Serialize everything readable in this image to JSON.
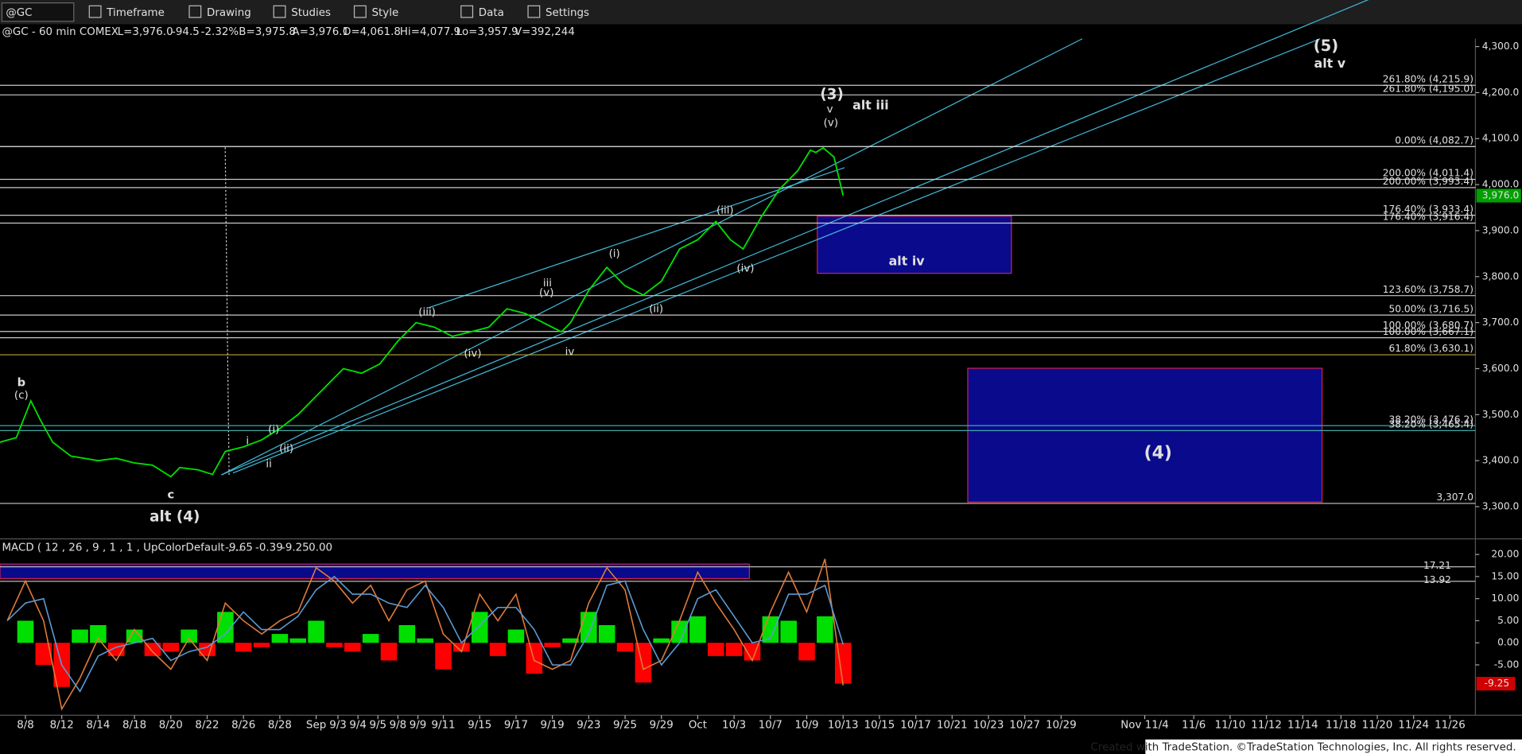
{
  "toolbar": {
    "symbol": "@GC",
    "menus": [
      "Timeframe",
      "Drawing",
      "Studies",
      "Style",
      "Data",
      "Settings"
    ]
  },
  "header": {
    "symbol": "@GC - 60 min COMEX",
    "fields": [
      {
        "text": "L=3,976.0",
        "color": "#ff5050"
      },
      {
        "text": "-94.5",
        "color": "#ff5050"
      },
      {
        "text": "-2.32%",
        "color": "#ff5050"
      },
      {
        "text": "B=3,975.8",
        "color": "#e0e0e0"
      },
      {
        "text": "A=3,976.1",
        "color": "#e0e0e0"
      },
      {
        "text": "O=4,061.8",
        "color": "#e0e0e0"
      },
      {
        "text": "Hi=4,077.9",
        "color": "#e0e0e0"
      },
      {
        "text": "Lo=3,957.9",
        "color": "#e0e0e0"
      },
      {
        "text": "V=392,244",
        "color": "#e0e0e0"
      }
    ]
  },
  "chart_data": [
    {
      "type": "line",
      "color": "#00e000",
      "x": [
        -1.4,
        -0.5,
        0,
        0.3,
        0.8,
        1.5,
        2.5,
        4,
        5,
        6,
        7,
        8,
        8.5,
        9.5,
        10.3,
        11,
        12,
        13,
        14,
        15,
        16,
        16.5,
        17.5,
        18.5,
        19.5,
        20.5,
        21.5,
        22.5,
        23.5,
        24.5,
        25.5,
        26.5,
        27.5,
        28.5,
        29.5,
        30,
        31,
        32,
        33,
        34,
        35,
        36,
        37,
        38,
        38.8,
        39.5,
        40.5,
        41.5,
        42.5,
        43.2,
        43.5,
        43.9,
        44.5,
        44.8,
        45
      ],
      "values": [
        3440,
        3450,
        3500,
        3530,
        3490,
        3440,
        3410,
        3400,
        3405,
        3395,
        3390,
        3365,
        3385,
        3380,
        3370,
        3420,
        3430,
        3445,
        3470,
        3500,
        3540,
        3560,
        3600,
        3590,
        3610,
        3660,
        3700,
        3690,
        3670,
        3680,
        3690,
        3730,
        3720,
        3700,
        3680,
        3700,
        3770,
        3820,
        3780,
        3760,
        3790,
        3860,
        3880,
        3920,
        3880,
        3860,
        3930,
        3990,
        4030,
        4075,
        4070,
        4080,
        4060,
        4010,
        3976
      ],
      "xlim": [
        -1.4,
        79.8
      ],
      "ylim": [
        3230,
        4317
      ],
      "yticks": [
        {
          "value": 4300,
          "label": "4,300.0"
        },
        {
          "value": 4200,
          "label": "4,200.0"
        },
        {
          "value": 4100,
          "label": "4,100.0"
        },
        {
          "value": 4000,
          "label": "4,000.0"
        },
        {
          "value": 3900,
          "label": "3,900.0"
        },
        {
          "value": 3800,
          "label": "3,800.0"
        },
        {
          "value": 3700,
          "label": "3,700.0"
        },
        {
          "value": 3600,
          "label": "3,600.0"
        },
        {
          "value": 3500,
          "label": "3,500.0"
        },
        {
          "value": 3400,
          "label": "3,400.0"
        },
        {
          "value": 3300,
          "label": "3,300.0"
        }
      ],
      "xticks": [
        {
          "value": 0,
          "label": "8/8"
        },
        {
          "value": 2,
          "label": "8/12"
        },
        {
          "value": 4,
          "label": "8/14"
        },
        {
          "value": 6,
          "label": "8/18"
        },
        {
          "value": 8,
          "label": "8/20"
        },
        {
          "value": 10,
          "label": "8/22"
        },
        {
          "value": 12,
          "label": "8/26"
        },
        {
          "value": 14,
          "label": "8/28"
        },
        {
          "value": 16,
          "label": "Sep"
        },
        {
          "value": 17.2,
          "label": "9/3"
        },
        {
          "value": 18.3,
          "label": "9/4"
        },
        {
          "value": 19.4,
          "label": "9/5"
        },
        {
          "value": 20.5,
          "label": "9/8"
        },
        {
          "value": 21.6,
          "label": "9/9"
        },
        {
          "value": 23,
          "label": "9/11"
        },
        {
          "value": 25,
          "label": "9/15"
        },
        {
          "value": 27,
          "label": "9/17"
        },
        {
          "value": 29,
          "label": "9/19"
        },
        {
          "value": 31,
          "label": "9/23"
        },
        {
          "value": 33,
          "label": "9/25"
        },
        {
          "value": 35,
          "label": "9/29"
        },
        {
          "value": 37,
          "label": "Oct"
        },
        {
          "value": 39,
          "label": "10/3"
        },
        {
          "value": 41,
          "label": "10/7"
        },
        {
          "value": 43,
          "label": "10/9"
        },
        {
          "value": 45,
          "label": "10/13"
        },
        {
          "value": 47,
          "label": "10/15"
        },
        {
          "value": 49,
          "label": "10/17"
        },
        {
          "value": 51,
          "label": "10/21"
        },
        {
          "value": 53,
          "label": "10/23"
        },
        {
          "value": 55,
          "label": "10/27"
        },
        {
          "value": 57,
          "label": "10/29"
        },
        {
          "value": 61.6,
          "label": "Nov 11/4"
        },
        {
          "value": 64.3,
          "label": "11/6"
        },
        {
          "value": 66.3,
          "label": "11/10"
        },
        {
          "value": 68.3,
          "label": "11/12"
        },
        {
          "value": 70.3,
          "label": "11/14"
        },
        {
          "value": 72.4,
          "label": "11/18"
        },
        {
          "value": 74.4,
          "label": "11/20"
        },
        {
          "value": 76.4,
          "label": "11/24"
        },
        {
          "value": 78.4,
          "label": "11/26"
        }
      ],
      "last": {
        "value": 3976,
        "label": "3,976.0"
      },
      "levels": [
        {
          "label": "261.80% (4,215.9)",
          "value": 4215.9,
          "color": "#c8c8c8"
        },
        {
          "label": "261.80% (4,195.0)",
          "value": 4195,
          "color": "#c8c8c8"
        },
        {
          "label": "0.00% (4,082.7)",
          "value": 4082.7,
          "color": "#e8e8e8"
        },
        {
          "label": "200.00% (4,011.4)",
          "value": 4011.4,
          "color": "#c8c8c8"
        },
        {
          "label": "200.00% (3,993.4)",
          "value": 3993.4,
          "color": "#c8c8c8"
        },
        {
          "label": "176.40% (3,933.4)",
          "value": 3933.4,
          "color": "#c8c8c8"
        },
        {
          "label": "176.40% (3,916.4)",
          "value": 3916.4,
          "color": "#c8c8c8"
        },
        {
          "label": "123.60% (3,758.7)",
          "value": 3758.7,
          "color": "#c8c8c8"
        },
        {
          "label": "50.00% (3,716.5)",
          "value": 3716.5,
          "color": "#c8c8c8"
        },
        {
          "label": "100.00% (3,680.7)",
          "value": 3680.7,
          "color": "#c8c8c8"
        },
        {
          "label": "100.00% (3,667.1)",
          "value": 3667.1,
          "color": "#c8c8c8"
        },
        {
          "label": "61.80% (3,630.1)",
          "value": 3630.1,
          "color": "#b8a040"
        },
        {
          "label": "38.20% (3,476.2)",
          "value": 3476.2,
          "color": "#40a8a8"
        },
        {
          "label": "38.20% (3,465.4)",
          "value": 3465.4,
          "color": "#40a8a8"
        },
        {
          "label": "3,307.0",
          "value": 3307,
          "color": "#c8c8c8"
        }
      ],
      "annotations": [
        {
          "text": "(5)",
          "color": "#29b6f6"
        },
        {
          "text": "alt v",
          "color": "#29b6f6"
        },
        {
          "text": "(3)",
          "color": "#d0d8ff"
        },
        {
          "text": "v",
          "color": "#d0d0d0"
        },
        {
          "text": "(v)",
          "color": "#d0d0d0"
        },
        {
          "text": "alt iii",
          "color": "#29b6f6"
        },
        {
          "text": "alt iv",
          "color": "#29b6f6"
        },
        {
          "text": "(4)",
          "color": "#22dd22"
        },
        {
          "text": "alt (4)",
          "color": "#29b6f6"
        },
        {
          "text": "c",
          "color": "#22dd22"
        },
        {
          "text": "b",
          "color": "#22dd22"
        },
        {
          "text": "(c)",
          "color": "#22dd22"
        },
        {
          "text": "i",
          "color": "#d0d0d0"
        },
        {
          "text": "ii",
          "color": "#d0d0d0"
        },
        {
          "text": "(i)",
          "color": "#d0d0d0"
        },
        {
          "text": "(ii)",
          "color": "#d0d0d0"
        },
        {
          "text": "(iii)",
          "color": "#d0d0d0"
        },
        {
          "text": "(iv)",
          "color": "#d0d0d0"
        },
        {
          "text": "iii",
          "color": "#d0d0d0"
        },
        {
          "text": "(v)",
          "color": "#d0d0d0"
        },
        {
          "text": "iv",
          "color": "#d0d0d0"
        },
        {
          "text": "(i)",
          "color": "#d0d0d0"
        },
        {
          "text": "(ii)",
          "color": "#d0d0d0"
        },
        {
          "text": "(iii)",
          "color": "#d0d0d0"
        },
        {
          "text": "(iv)",
          "color": "#d0d0d0"
        }
      ]
    },
    {
      "type": "macd",
      "title": "MACD ( 12 , 26 , 9 , 1 , 1 , UpColorDefault ,...",
      "readings": [
        {
          "text": "-9.65",
          "color": "#ff9933"
        },
        {
          "text": "-0.39",
          "color": "#5b9bd5"
        },
        {
          "text": "-9.25",
          "color": "#ff4040"
        },
        {
          "text": "0.00",
          "color": "#33cc33"
        }
      ],
      "x": [
        -1,
        0,
        1,
        2,
        3,
        4,
        5,
        6,
        7,
        8,
        9,
        10,
        11,
        12,
        13,
        14,
        15,
        16,
        17,
        18,
        19,
        20,
        21,
        22,
        23,
        24,
        25,
        26,
        27,
        28,
        29,
        30,
        31,
        32,
        33,
        34,
        35,
        36,
        37,
        38,
        39,
        40,
        41,
        42,
        43,
        44,
        45
      ],
      "series": [
        {
          "color": "#e07b39",
          "values": [
            5,
            14,
            5,
            -15,
            -8,
            1,
            -4,
            3,
            -2,
            -6,
            1,
            -4,
            9,
            5,
            2,
            5,
            7,
            17,
            14,
            9,
            13,
            5,
            12,
            14,
            2,
            -2,
            11,
            5,
            11,
            -4,
            -6,
            -4,
            9,
            17,
            12,
            -6,
            -4,
            5,
            16,
            9,
            3,
            -4,
            7,
            16,
            7,
            19,
            -9.65
          ]
        },
        {
          "color": "#5b9bd5",
          "values": [
            5,
            9,
            10,
            -5,
            -11,
            -3,
            -1,
            0,
            1,
            -4,
            -2,
            -1,
            2,
            7,
            3,
            3,
            6,
            12,
            15,
            11,
            11,
            9,
            8,
            13,
            8,
            0,
            4,
            8,
            8,
            3,
            -5,
            -5,
            2,
            13,
            14,
            3,
            -5,
            0,
            10,
            12,
            6,
            0,
            1,
            11,
            11,
            13,
            -0.39
          ]
        }
      ],
      "histogram": {
        "colors": [
          "#00e000",
          "#ff0000"
        ],
        "values": [
          0,
          5,
          -5,
          -10,
          3,
          4,
          -3,
          3,
          -3,
          -2,
          3,
          -3,
          7,
          -2,
          -1,
          2,
          1,
          5,
          -1,
          -2,
          2,
          -4,
          4,
          1,
          -6,
          -2,
          7,
          -3,
          3,
          -7,
          -1,
          1,
          7,
          4,
          -2,
          -9,
          1,
          5,
          6,
          -3,
          -3,
          -4,
          6,
          5,
          -4,
          6,
          -9.25
        ]
      },
      "xlim": [
        -1.4,
        79.8
      ],
      "ylim": [
        -16.4,
        23.1
      ],
      "yticks": [
        {
          "value": 20,
          "label": "20.00"
        },
        {
          "value": 15,
          "label": "15.00"
        },
        {
          "value": 10,
          "label": "10.00"
        },
        {
          "value": 5,
          "label": "5.00"
        },
        {
          "value": 0,
          "label": "0.00"
        },
        {
          "value": -5,
          "label": "-5.00"
        }
      ],
      "levels": [
        17.21,
        13.92
      ],
      "last": -9.25
    }
  ],
  "footer": "Created with TradeStation. ©TradeStation Technologies, Inc. All rights reserved."
}
